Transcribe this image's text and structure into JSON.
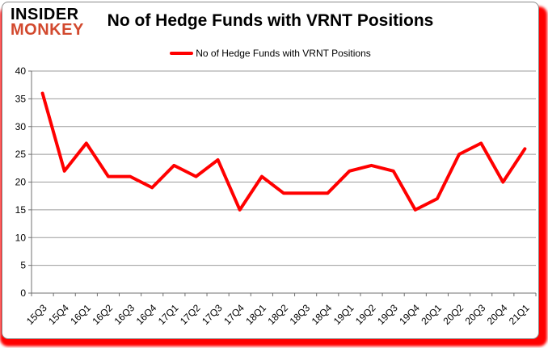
{
  "brand": {
    "line1": "INSIDER",
    "line2": "MONKEY",
    "color1": "#000000",
    "color2": "#d2492e"
  },
  "title": "No of Hedge Funds with VRNT Positions",
  "legend": {
    "label": "No of Hedge Funds with VRNT Positions",
    "swatch_color": "#ff0000"
  },
  "accent": {
    "backdrop_color": "#ff0000",
    "gridline_color": "#9b9b9b",
    "axis_color": "#707070",
    "tick_label_color": "#000000"
  },
  "chart_data": {
    "type": "line",
    "title": "No of Hedge Funds with VRNT Positions",
    "xlabel": "",
    "ylabel": "",
    "categories": [
      "15Q3",
      "15Q4",
      "16Q1",
      "16Q2",
      "16Q3",
      "16Q4",
      "17Q1",
      "17Q2",
      "17Q3",
      "17Q4",
      "18Q1",
      "18Q2",
      "18Q3",
      "18Q4",
      "19Q1",
      "19Q2",
      "19Q3",
      "19Q4",
      "20Q1",
      "20Q2",
      "20Q3",
      "20Q4",
      "21Q1"
    ],
    "series": [
      {
        "name": "No of Hedge Funds with VRNT Positions",
        "color": "#ff0000",
        "values": [
          36,
          22,
          27,
          21,
          21,
          19,
          23,
          21,
          24,
          15,
          21,
          18,
          18,
          18,
          22,
          23,
          22,
          15,
          17,
          25,
          27,
          20,
          26
        ]
      }
    ],
    "ylim": [
      0,
      40
    ],
    "ytick_step": 5,
    "grid": true,
    "legend_position": "top"
  }
}
